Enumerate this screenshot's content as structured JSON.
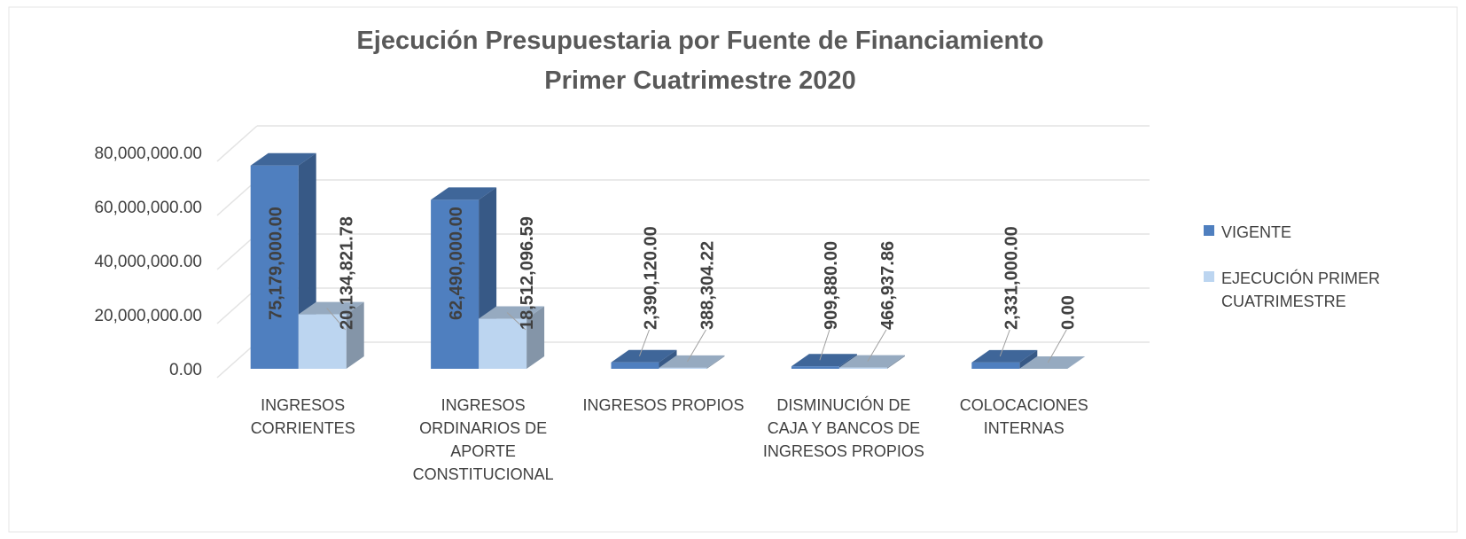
{
  "chart_data": {
    "type": "bar3d",
    "title": "Ejecución Presupuestaria por Fuente de Financiamiento",
    "subtitle": "Primer Cuatrimestre 2020",
    "categories": [
      "INGRESOS\nCORRIENTES",
      "INGRESOS\nORDINARIOS DE\nAPORTE\nCONSTITUCIONAL",
      "INGRESOS PROPIOS",
      "DISMINUCIÓN  DE\nCAJA Y BANCOS DE\nINGRESOS PROPIOS",
      "COLOCACIONES\nINTERNAS"
    ],
    "series": [
      {
        "name": "VIGENTE",
        "color": "#4f7fbf",
        "values": [
          75179000,
          62490000,
          2390120,
          909880,
          2331000
        ],
        "value_labels": [
          "75,179,000.00",
          "62,490,000.00",
          "2,390,120.00",
          "909,880.00",
          "2,331,000.00"
        ]
      },
      {
        "name": "EJECUCIÓN PRIMER\nCUATRIMESTRE",
        "color": "#bcd5f0",
        "values": [
          20134821.78,
          18512096.59,
          388304.22,
          466937.86,
          0
        ],
        "value_labels": [
          "20,134,821.78",
          "18,512,096.59",
          "388,304.22",
          "466,937.86",
          "0.00"
        ]
      }
    ],
    "ylim": [
      0,
      80000000
    ],
    "yticks": [
      {
        "value": 0,
        "label": "0.00"
      },
      {
        "value": 20000000,
        "label": "20,000,000.00"
      },
      {
        "value": 40000000,
        "label": "40,000,000.00"
      },
      {
        "value": 60000000,
        "label": "60,000,000.00"
      },
      {
        "value": 80000000,
        "label": "80,000,000.00"
      }
    ],
    "grid": true,
    "legend": "right"
  }
}
